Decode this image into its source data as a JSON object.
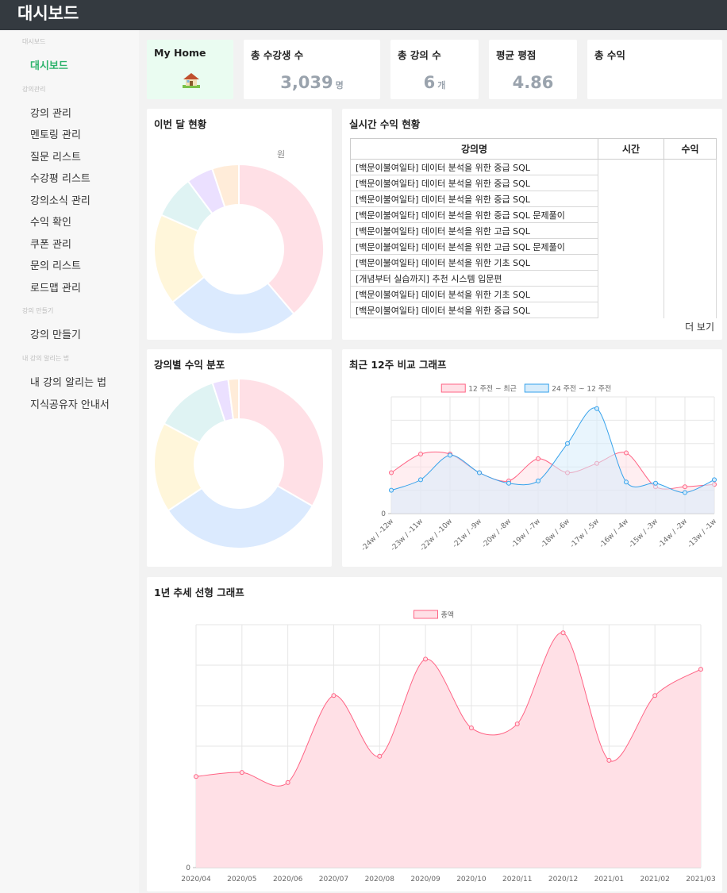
{
  "header": {
    "title": "대시보드"
  },
  "sidebar": {
    "sections": [
      {
        "title": "대시보드",
        "items": [
          {
            "label": "대시보드",
            "active": true
          }
        ]
      },
      {
        "title": "강의관리",
        "items": [
          {
            "label": "강의 관리"
          },
          {
            "label": "멘토링 관리"
          },
          {
            "label": "질문 리스트"
          },
          {
            "label": "수강평 리스트"
          },
          {
            "label": "강의소식 관리"
          },
          {
            "label": "수익 확인"
          },
          {
            "label": "쿠폰 관리"
          },
          {
            "label": "문의 리스트"
          },
          {
            "label": "로드맵 관리"
          }
        ]
      },
      {
        "title": "강의 만들기",
        "items": [
          {
            "label": "강의 만들기"
          }
        ]
      },
      {
        "title": "내 강의 알리는 법",
        "items": [
          {
            "label": "내 강의 알리는 법"
          },
          {
            "label": "지식공유자 안내서"
          }
        ]
      }
    ]
  },
  "stats": {
    "home": {
      "title": "My Home",
      "icon": "house-icon"
    },
    "students": {
      "title": "총 수강생 수",
      "value": "3,039",
      "unit": "명"
    },
    "courses": {
      "title": "총 강의 수",
      "value": "6",
      "unit": "개"
    },
    "rating": {
      "title": "평균 평점",
      "value": "4.86"
    },
    "revenue": {
      "title": "총 수익"
    }
  },
  "monthly": {
    "title": "이번 달 현황",
    "unit_label": "원",
    "chart_data": {
      "type": "pie",
      "values": [
        38,
        25,
        17,
        8,
        5,
        5
      ],
      "colors": [
        "#ffe0e6",
        "#dbeafe",
        "#fff6da",
        "#dff3f3",
        "#ebe0ff",
        "#ffecd9"
      ]
    }
  },
  "realtime": {
    "title": "실시간 수익 현황",
    "columns": [
      "강의명",
      "시간",
      "수익"
    ],
    "rows": [
      "[백문이불여일타] 데이터 분석을 위한 중급 SQL",
      "[백문이불여일타] 데이터 분석을 위한 중급 SQL",
      "[백문이불여일타] 데이터 분석을 위한 중급 SQL",
      "[백문이불여일타] 데이터 분석을 위한 중급 SQL 문제풀이",
      "[백문이불여일타] 데이터 분석을 위한 고급 SQL",
      "[백문이불여일타] 데이터 분석을 위한 고급 SQL 문제풀이",
      "[백문이불여일타] 데이터 분석을 위한 기초 SQL",
      "[개념부터 실습까지] 추천 시스템 입문편",
      "[백문이불여일타] 데이터 분석을 위한 기초 SQL",
      "[백문이불여일타] 데이터 분석을 위한 중급 SQL"
    ],
    "more_label": "더 보기"
  },
  "course_dist": {
    "title": "강의별 수익 분포",
    "chart_data": {
      "type": "pie",
      "values": [
        33,
        32,
        17,
        12,
        3,
        2
      ],
      "colors": [
        "#ffe0e6",
        "#dbeafe",
        "#fff6da",
        "#dff3f3",
        "#ebe0ff",
        "#ffecd9"
      ]
    }
  },
  "weekly": {
    "title": "최근 12주 비교 그래프",
    "chart_data": {
      "type": "area",
      "categories": [
        "-24w / -12w",
        "-23w / -11w",
        "-22w / -10w",
        "-21w / -9w",
        "-20w / -8w",
        "-19w / -7w",
        "-18w / -6w",
        "-17w / -5w",
        "-16w / -4w",
        "-15w / -3w",
        "-14w / -2w",
        "-13w / -1w"
      ],
      "series": [
        {
          "name": "12 주전 ~ 최근",
          "color": "#ff6384",
          "fill": "#ffe0e6",
          "values": [
            17.5,
            25.5,
            25.5,
            17.5,
            14,
            23.5,
            17.5,
            21.5,
            26,
            11.5,
            11.5,
            12.5
          ]
        },
        {
          "name": "24 주전 ~ 12 주전",
          "color": "#36a2eb",
          "fill": "#d7ecfb",
          "values": [
            10,
            14.5,
            25,
            17.5,
            13,
            14,
            30,
            45,
            13.5,
            13,
            9,
            14.5
          ]
        }
      ],
      "ylim": [
        0,
        50
      ],
      "ytick_label": "0",
      "legend": "top"
    }
  },
  "yearly": {
    "title": "1년 추세 선형 그래프",
    "chart_data": {
      "type": "area",
      "categories": [
        "2020/04",
        "2020/05",
        "2020/06",
        "2020/07",
        "2020/08",
        "2020/09",
        "2020/10",
        "2020/11",
        "2020/12",
        "2021/01",
        "2021/02",
        "2021/03"
      ],
      "series": [
        {
          "name": "총액",
          "color": "#ff6384",
          "fill": "#ffe0e6",
          "values": [
            22.5,
            23.5,
            21,
            42.5,
            27.5,
            51.5,
            34.5,
            35.5,
            58,
            26.5,
            42.5,
            49
          ]
        }
      ],
      "ylim": [
        0,
        60
      ],
      "ytick_label": "0",
      "legend": "top"
    }
  }
}
